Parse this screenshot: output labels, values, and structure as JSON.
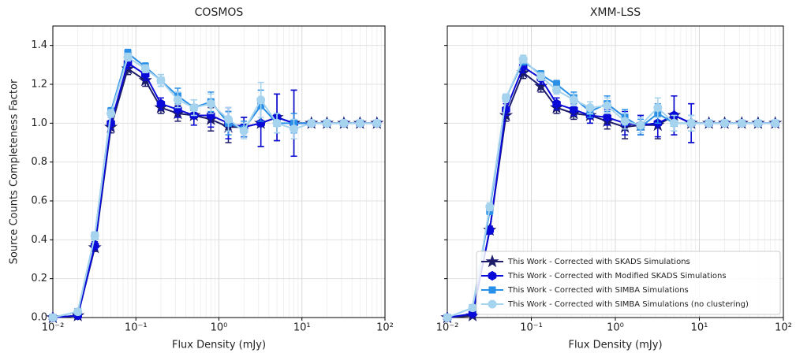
{
  "chart_data": [
    {
      "type": "line",
      "title": "COSMOS",
      "x_label": "Flux Density (mJy)",
      "y_label": "Source Counts Completeness Factor",
      "x_log": true,
      "grid": true,
      "show_ytick_labels": true,
      "xlim": [
        0.01,
        100
      ],
      "ylim": [
        0,
        1.5
      ],
      "xticks": [
        {
          "value": 0.01,
          "label": "10⁻²"
        },
        {
          "value": 0.1,
          "label": "10⁻¹"
        },
        {
          "value": 1,
          "label": "10⁰"
        },
        {
          "value": 10,
          "label": "10¹"
        },
        {
          "value": 100,
          "label": "10²"
        }
      ],
      "yticks": [
        {
          "value": 0,
          "label": "0.0"
        },
        0.2,
        0.4,
        0.6,
        0.8,
        {
          "value": 1,
          "label": "1.0"
        },
        1.2,
        1.4
      ],
      "x": [
        0.01,
        0.02,
        0.032,
        0.05,
        0.08,
        0.13,
        0.2,
        0.32,
        0.5,
        0.8,
        1.3,
        2,
        3.2,
        5,
        8,
        13,
        20,
        32,
        50,
        80
      ],
      "series": [
        {
          "color": "#1c1c6b",
          "marker": "star",
          "values": [
            0,
            0.01,
            0.36,
            0.98,
            1.28,
            1.22,
            1.08,
            1.05,
            1.04,
            1.02,
            0.98,
            0.98,
            1.0,
            1.03,
            1.0,
            1,
            1,
            1,
            1,
            1
          ],
          "errors": [
            0,
            0.01,
            0.02,
            0.03,
            0.03,
            0.03,
            0.03,
            0.04,
            0.05,
            0.06,
            0.08,
            0.05,
            0.12,
            0.12,
            0.17,
            0,
            0,
            0,
            0,
            0
          ]
        },
        {
          "color": "#0a0ad8",
          "marker": "hexagon",
          "values": [
            0,
            0.01,
            0.37,
            1.0,
            1.31,
            1.25,
            1.1,
            1.07,
            1.04,
            1.04,
            1.0,
            0.98,
            1.0,
            1.03,
            1.0,
            1,
            1,
            1,
            1,
            1
          ],
          "errors": [
            0,
            0.01,
            0.02,
            0.03,
            0.03,
            0.03,
            0.03,
            0.04,
            0.05,
            0.06,
            0.08,
            0.05,
            0.12,
            0.12,
            0.17,
            0,
            0,
            0,
            0,
            0
          ]
        },
        {
          "color": "#2a8fe6",
          "marker": "square",
          "values": [
            0,
            0.03,
            0.42,
            1.06,
            1.36,
            1.29,
            1.22,
            1.14,
            1.08,
            1.11,
            1.0,
            0.97,
            1.09,
            1.0,
            1.0,
            1,
            1,
            1,
            1,
            1
          ],
          "errors": [
            0,
            0.01,
            0.02,
            0.02,
            0.02,
            0.02,
            0.03,
            0.04,
            0.04,
            0.05,
            0.06,
            0.04,
            0.08,
            0.05,
            0.05,
            0,
            0,
            0,
            0,
            0
          ]
        },
        {
          "color": "#a6d3ee",
          "marker": "circle",
          "values": [
            0,
            0.03,
            0.42,
            1.05,
            1.34,
            1.28,
            1.22,
            1.12,
            1.08,
            1.1,
            1.02,
            0.96,
            1.12,
            1.0,
            0.97,
            1,
            1,
            1,
            1,
            1
          ],
          "errors": [
            0,
            0.01,
            0.02,
            0.02,
            0.02,
            0.02,
            0.03,
            0.04,
            0.04,
            0.05,
            0.06,
            0.04,
            0.09,
            0.05,
            0.05,
            0,
            0,
            0,
            0,
            0
          ]
        }
      ]
    },
    {
      "type": "line",
      "title": "XMM-LSS",
      "x_label": "Flux Density (mJy)",
      "x_log": true,
      "grid": true,
      "show_ytick_labels": false,
      "legend": "lower right",
      "xlim": [
        0.01,
        100
      ],
      "ylim": [
        0,
        1.5
      ],
      "xticks": [
        {
          "value": 0.01,
          "label": "10⁻²"
        },
        {
          "value": 0.1,
          "label": "10⁻¹"
        },
        {
          "value": 1,
          "label": "10⁰"
        },
        {
          "value": 10,
          "label": "10¹"
        },
        {
          "value": 100,
          "label": "10²"
        }
      ],
      "yticks": [
        0,
        0.2,
        0.4,
        0.6,
        0.8,
        1,
        1.2,
        1.4
      ],
      "x": [
        0.01,
        0.02,
        0.032,
        0.05,
        0.08,
        0.13,
        0.2,
        0.32,
        0.5,
        0.8,
        1.3,
        2,
        3.2,
        5,
        8,
        13,
        20,
        32,
        50,
        80
      ],
      "series": [
        {
          "name": "This Work - Corrected with SKADS Simulations",
          "color": "#1c1c6b",
          "marker": "star",
          "values": [
            0,
            0.01,
            0.45,
            1.04,
            1.26,
            1.19,
            1.08,
            1.05,
            1.04,
            1.01,
            0.98,
            0.99,
            0.99,
            1.04,
            1.0,
            1,
            1,
            1,
            1,
            1
          ],
          "errors": [
            0,
            0.01,
            0.02,
            0.03,
            0.03,
            0.03,
            0.03,
            0.03,
            0.04,
            0.04,
            0.06,
            0.05,
            0.07,
            0.1,
            0.1,
            0,
            0,
            0,
            0,
            0
          ]
        },
        {
          "name": "This Work - Corrected with Modified SKADS Simulations",
          "color": "#0a0ad8",
          "marker": "hexagon",
          "values": [
            0,
            0.02,
            0.45,
            1.07,
            1.29,
            1.23,
            1.1,
            1.07,
            1.04,
            1.03,
            1.0,
            0.99,
            1.0,
            1.04,
            1.0,
            1,
            1,
            1,
            1,
            1
          ],
          "errors": [
            0,
            0.01,
            0.02,
            0.03,
            0.03,
            0.03,
            0.03,
            0.03,
            0.04,
            0.04,
            0.06,
            0.05,
            0.07,
            0.1,
            0.1,
            0,
            0,
            0,
            0,
            0
          ]
        },
        {
          "name": "This Work - Corrected with SIMBA Simulations",
          "color": "#2a8fe6",
          "marker": "square",
          "values": [
            0,
            0.05,
            0.55,
            1.13,
            1.32,
            1.25,
            1.2,
            1.13,
            1.06,
            1.1,
            1.03,
            0.98,
            1.05,
            1.0,
            1.0,
            1,
            1,
            1,
            1,
            1
          ],
          "errors": [
            0,
            0.01,
            0.02,
            0.02,
            0.02,
            0.02,
            0.02,
            0.03,
            0.03,
            0.04,
            0.04,
            0.04,
            0.05,
            0.04,
            0.04,
            0,
            0,
            0,
            0,
            0
          ]
        },
        {
          "name": "This Work - Corrected with SIMBA Simulations (no clustering)",
          "color": "#a6d3ee",
          "marker": "circle",
          "values": [
            0,
            0.05,
            0.57,
            1.13,
            1.33,
            1.24,
            1.17,
            1.12,
            1.08,
            1.09,
            1.01,
            0.99,
            1.08,
            1.0,
            1.0,
            1,
            1,
            1,
            1,
            1
          ],
          "errors": [
            0,
            0.01,
            0.02,
            0.02,
            0.02,
            0.02,
            0.02,
            0.03,
            0.03,
            0.04,
            0.04,
            0.04,
            0.05,
            0.04,
            0.04,
            0,
            0,
            0,
            0,
            0
          ]
        }
      ]
    }
  ]
}
